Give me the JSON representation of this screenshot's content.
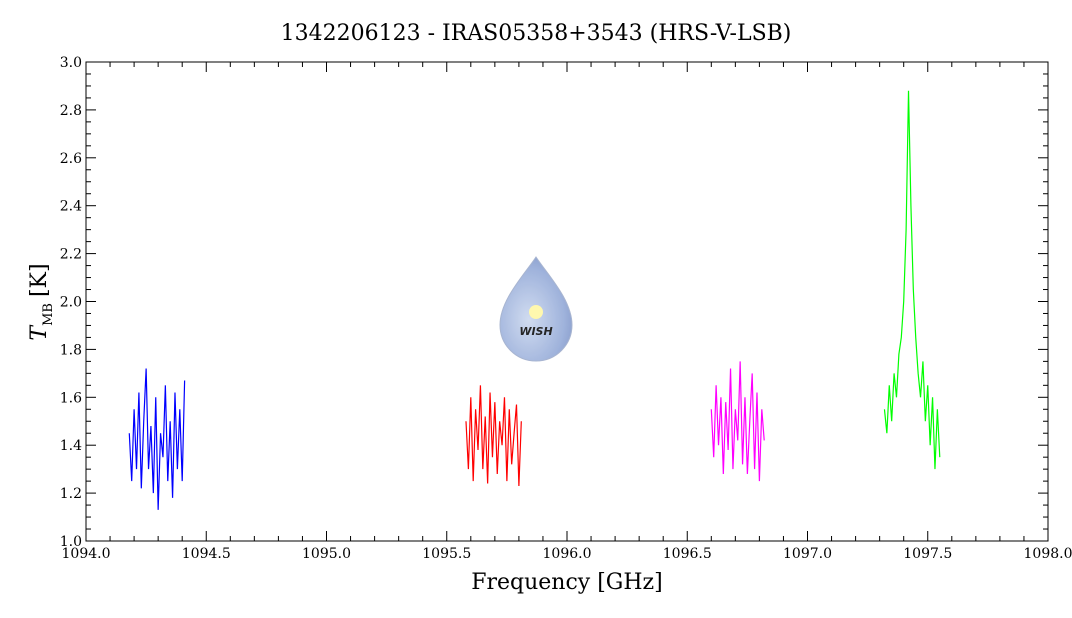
{
  "chart_data": {
    "type": "line",
    "title": "1342206123 - IRAS05358+3543 (HRS-V-LSB)",
    "xlabel": "Frequency [GHz]",
    "ylabel": "T",
    "ylabel_sub": "MB",
    "ylabel_unit": "[K]",
    "logo_text": "WISH",
    "xlim": [
      1094,
      1098
    ],
    "ylim": [
      1.0,
      3.0
    ],
    "xticks": [
      {
        "value": 1094,
        "label": "1094.0"
      },
      1094.5,
      {
        "value": 1095,
        "label": "1095.0"
      },
      1095.5,
      {
        "value": 1096,
        "label": "1096.0"
      },
      1096.5,
      {
        "value": 1097,
        "label": "1097.0"
      },
      1097.5,
      {
        "value": 1098,
        "label": "1098.0"
      }
    ],
    "yticks": [
      {
        "value": 1.0,
        "label": "1.0"
      },
      1.2,
      1.4,
      1.6,
      1.8,
      {
        "value": 2.0,
        "label": "2.0"
      },
      2.2,
      2.4,
      2.6,
      2.8,
      {
        "value": 3.0,
        "label": "3.0"
      }
    ],
    "series": [
      {
        "color": "#0000ff",
        "x": [
          1094.18,
          1094.19,
          1094.2,
          1094.21,
          1094.22,
          1094.23,
          1094.24,
          1094.25,
          1094.26,
          1094.27,
          1094.28,
          1094.29,
          1094.3,
          1094.31,
          1094.32,
          1094.33,
          1094.34,
          1094.35,
          1094.36,
          1094.37,
          1094.38,
          1094.39,
          1094.4,
          1094.41
        ],
        "values": [
          1.45,
          1.25,
          1.55,
          1.3,
          1.62,
          1.22,
          1.5,
          1.72,
          1.3,
          1.48,
          1.2,
          1.6,
          1.13,
          1.45,
          1.35,
          1.65,
          1.25,
          1.5,
          1.18,
          1.62,
          1.3,
          1.55,
          1.25,
          1.67
        ]
      },
      {
        "color": "#ff0000",
        "x": [
          1095.58,
          1095.59,
          1095.6,
          1095.61,
          1095.62,
          1095.63,
          1095.64,
          1095.65,
          1095.66,
          1095.67,
          1095.68,
          1095.69,
          1095.7,
          1095.71,
          1095.72,
          1095.73,
          1095.74,
          1095.75,
          1095.76,
          1095.77,
          1095.78,
          1095.79,
          1095.8,
          1095.81
        ],
        "values": [
          1.5,
          1.3,
          1.6,
          1.25,
          1.55,
          1.38,
          1.65,
          1.3,
          1.52,
          1.24,
          1.62,
          1.35,
          1.58,
          1.28,
          1.5,
          1.4,
          1.6,
          1.25,
          1.55,
          1.32,
          1.45,
          1.57,
          1.23,
          1.5
        ]
      },
      {
        "color": "#ff00ff",
        "x": [
          1096.6,
          1096.61,
          1096.62,
          1096.63,
          1096.64,
          1096.65,
          1096.66,
          1096.67,
          1096.68,
          1096.69,
          1096.7,
          1096.71,
          1096.72,
          1096.73,
          1096.74,
          1096.75,
          1096.76,
          1096.77,
          1096.78,
          1096.79,
          1096.8,
          1096.81,
          1096.82
        ],
        "values": [
          1.55,
          1.35,
          1.65,
          1.4,
          1.6,
          1.28,
          1.58,
          1.38,
          1.72,
          1.3,
          1.55,
          1.42,
          1.75,
          1.32,
          1.6,
          1.28,
          1.5,
          1.7,
          1.3,
          1.62,
          1.25,
          1.55,
          1.42
        ]
      },
      {
        "color": "#00ff00",
        "x": [
          1097.32,
          1097.33,
          1097.34,
          1097.35,
          1097.36,
          1097.37,
          1097.38,
          1097.39,
          1097.4,
          1097.41,
          1097.42,
          1097.43,
          1097.44,
          1097.45,
          1097.46,
          1097.47,
          1097.48,
          1097.49,
          1097.5,
          1097.51,
          1097.52,
          1097.53,
          1097.54,
          1097.55
        ],
        "values": [
          1.55,
          1.45,
          1.65,
          1.5,
          1.7,
          1.6,
          1.78,
          1.85,
          2.0,
          2.3,
          2.88,
          2.4,
          2.05,
          1.85,
          1.7,
          1.6,
          1.75,
          1.5,
          1.65,
          1.4,
          1.6,
          1.3,
          1.55,
          1.35
        ]
      }
    ]
  }
}
